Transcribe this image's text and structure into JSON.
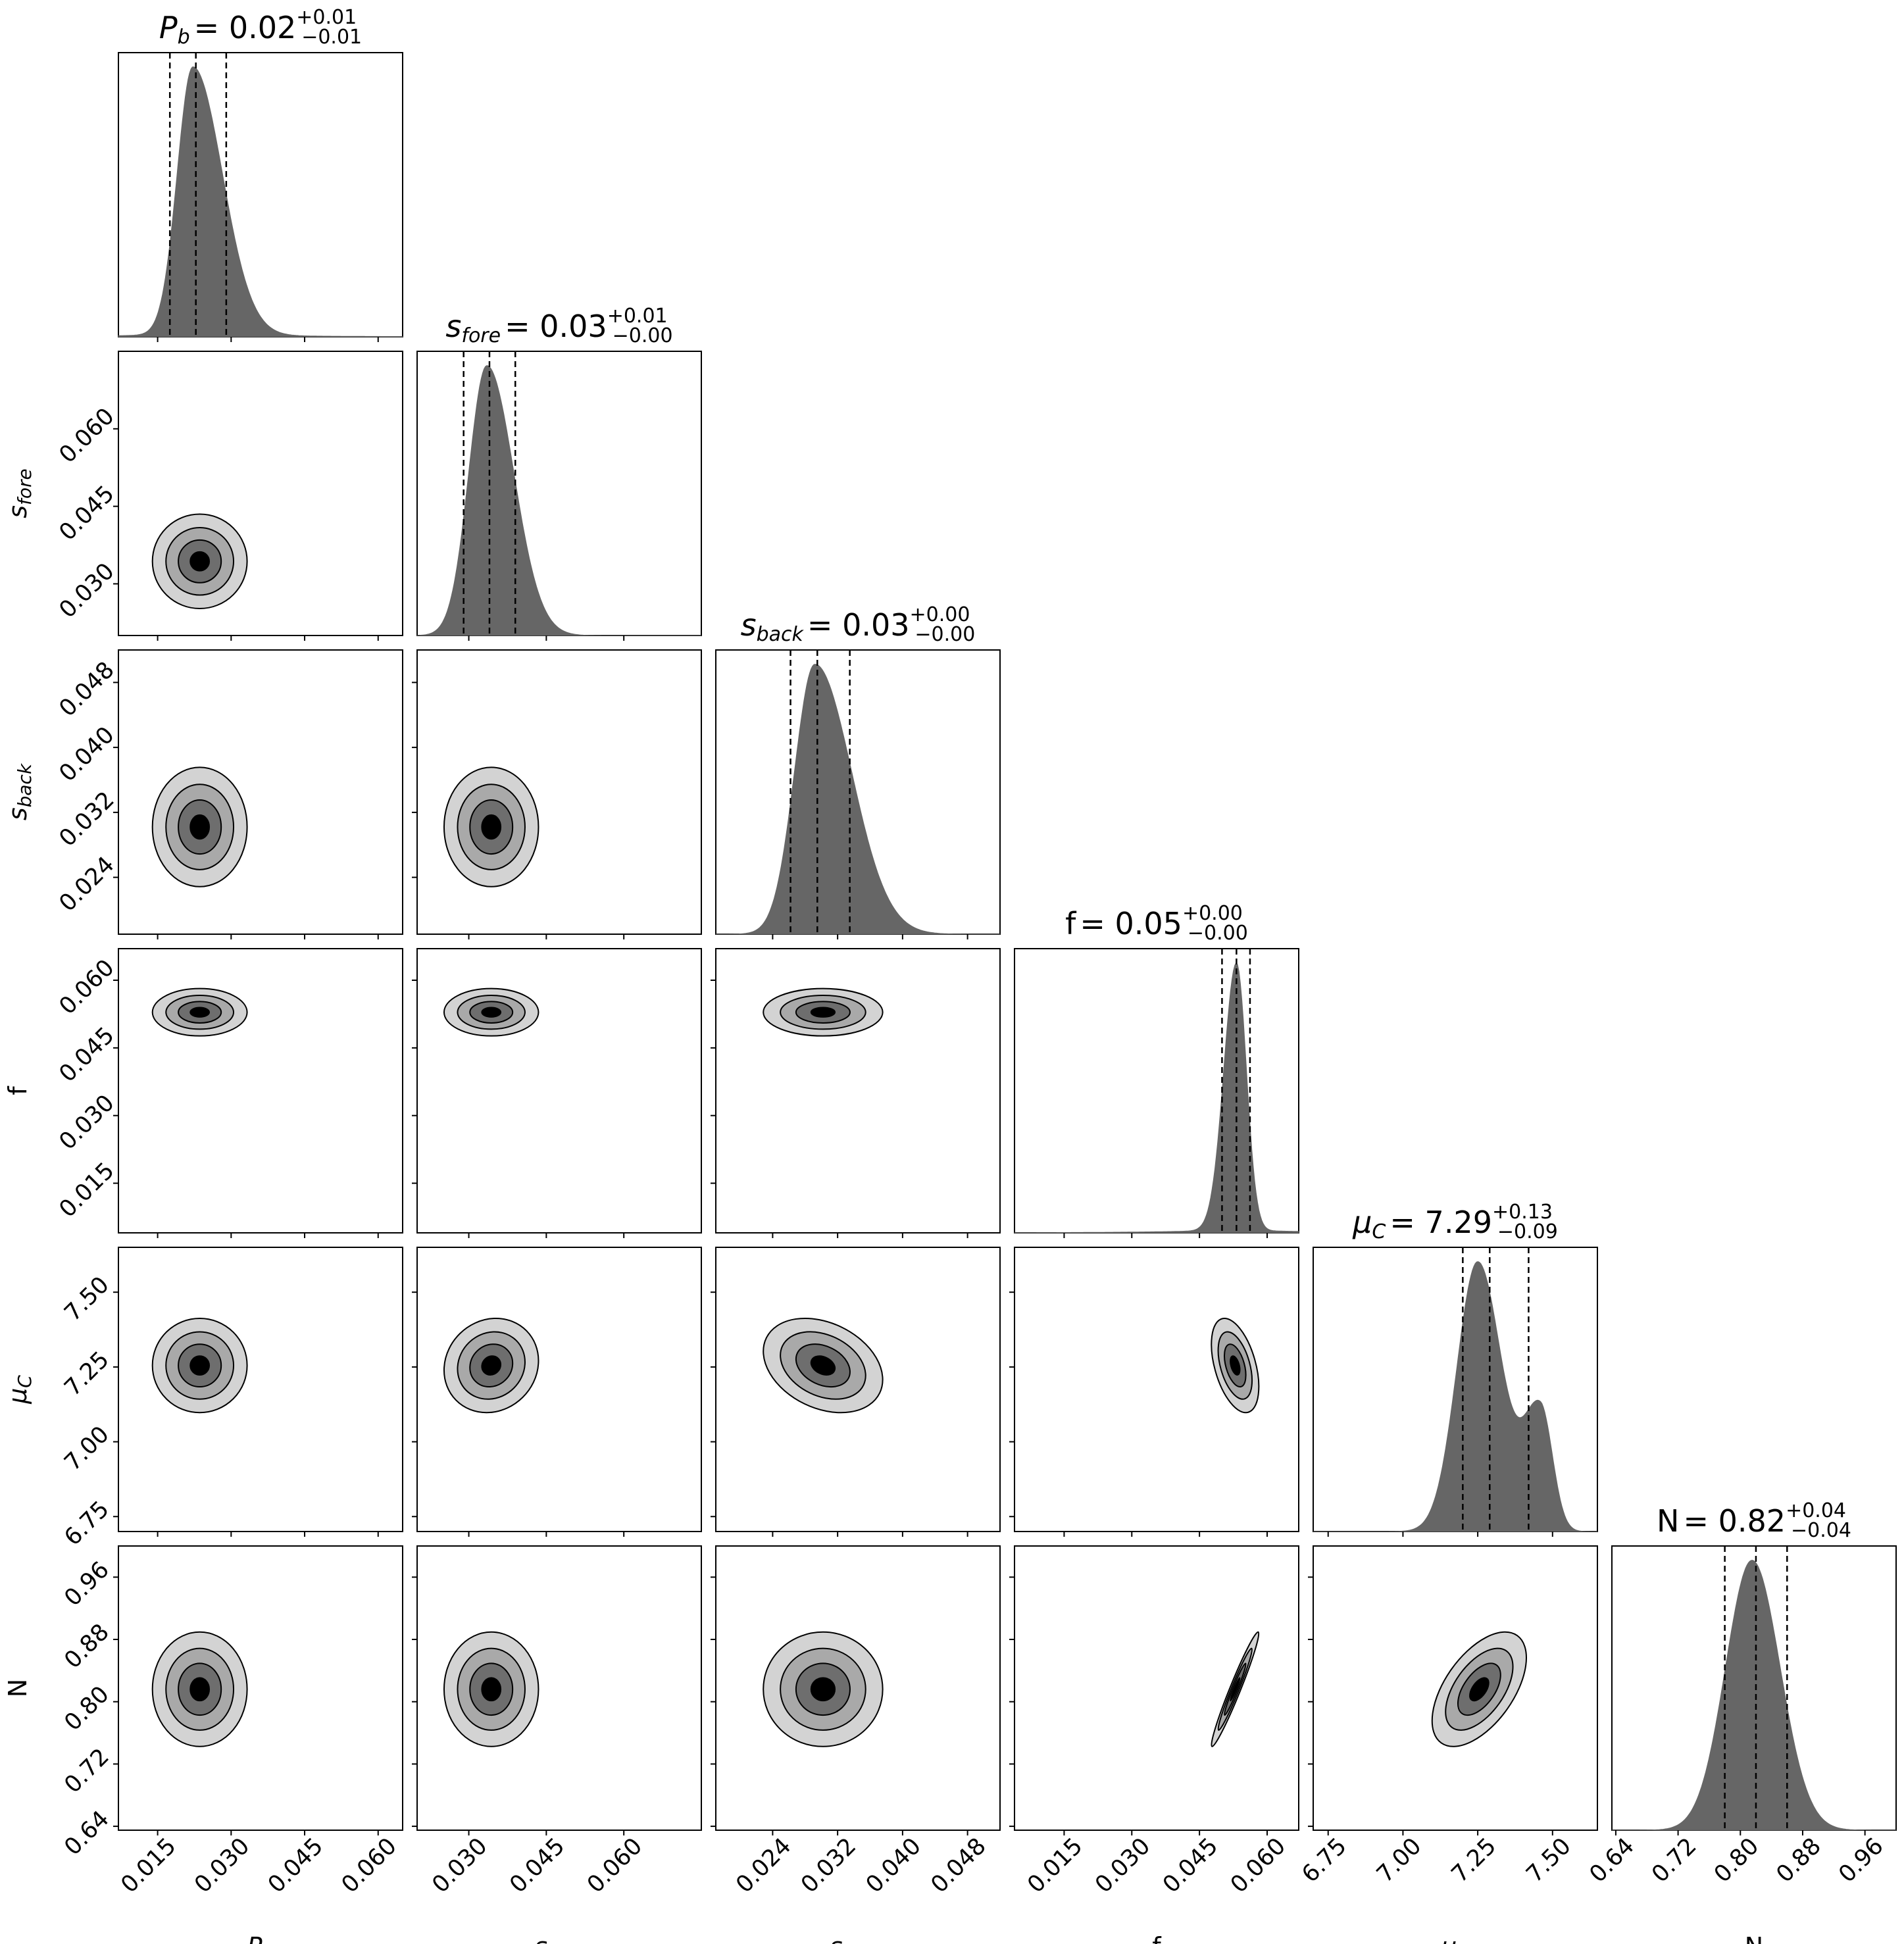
{
  "chart_data": {
    "type": "corner",
    "parameters": [
      {
        "key": "Pb",
        "sym": "P",
        "sub": "b",
        "italic_sym": true,
        "label": "P_b",
        "range": [
          0.007,
          0.065
        ],
        "ticks": [
          0.015,
          0.03,
          0.045,
          0.06
        ],
        "tick_labels": [
          "0.015",
          "0.030",
          "0.045",
          "0.060"
        ],
        "title": {
          "value": "0.02",
          "plus": "+0.01",
          "minus": "−0.01"
        },
        "quantiles": [
          0.0175,
          0.0228,
          0.029
        ],
        "mode": 0.022
      },
      {
        "key": "sfore",
        "sym": "s",
        "sub": "fore",
        "italic_sym": true,
        "label": "s_fore",
        "range": [
          0.02,
          0.075
        ],
        "ticks": [
          0.03,
          0.045,
          0.06
        ],
        "tick_labels": [
          "0.030",
          "0.045",
          "0.060"
        ],
        "title": {
          "value": "0.03",
          "plus": "+0.01",
          "minus": "−0.00"
        },
        "quantiles": [
          0.029,
          0.034,
          0.039
        ],
        "mode": 0.0335
      },
      {
        "key": "sback",
        "sym": "s",
        "sub": "back",
        "italic_sym": true,
        "label": "s_back",
        "range": [
          0.017,
          0.052
        ],
        "ticks": [
          0.024,
          0.032,
          0.04,
          0.048
        ],
        "tick_labels": [
          "0.024",
          "0.032",
          "0.040",
          "0.048"
        ],
        "title": {
          "value": "0.03",
          "plus": "+0.00",
          "minus": "−0.00"
        },
        "quantiles": [
          0.0262,
          0.0295,
          0.0335
        ],
        "mode": 0.029
      },
      {
        "key": "f",
        "sym": "f",
        "sub": "",
        "italic_sym": false,
        "label": "f",
        "range": [
          0.004,
          0.067
        ],
        "ticks": [
          0.015,
          0.03,
          0.045,
          0.06
        ],
        "tick_labels": [
          "0.015",
          "0.030",
          "0.045",
          "0.060"
        ],
        "title": {
          "value": "0.05",
          "plus": "+0.00",
          "minus": "−0.00"
        },
        "quantiles": [
          0.05,
          0.0532,
          0.0562
        ],
        "mode": 0.053
      },
      {
        "key": "muC",
        "sym": "μ",
        "sub": "C",
        "italic_sym": true,
        "label": "μ_C",
        "range": [
          6.7,
          7.65
        ],
        "ticks": [
          6.75,
          7.0,
          7.25,
          7.5
        ],
        "tick_labels": [
          "6.75",
          "7.00",
          "7.25",
          "7.50"
        ],
        "title": {
          "value": "7.29",
          "plus": "+0.13",
          "minus": "−0.09"
        },
        "quantiles": [
          7.2,
          7.29,
          7.42
        ],
        "mode": 7.25
      },
      {
        "key": "N",
        "sym": "N",
        "sub": "",
        "italic_sym": false,
        "label": "N",
        "range": [
          0.635,
          1.0
        ],
        "ticks": [
          0.64,
          0.72,
          0.8,
          0.88,
          0.96
        ],
        "tick_labels": [
          "0.64",
          "0.72",
          "0.80",
          "0.88",
          "0.96"
        ],
        "title": {
          "value": "0.82",
          "plus": "+0.04",
          "minus": "−0.04"
        },
        "quantiles": [
          0.78,
          0.82,
          0.86
        ],
        "mode": 0.82
      }
    ],
    "marginals": [
      {
        "param": "Pb",
        "shape": "skew",
        "center": 0.0222,
        "sigma_left": 0.0032,
        "sigma_right": 0.006,
        "tail": 0.01
      },
      {
        "param": "sfore",
        "shape": "skew",
        "center": 0.0335,
        "sigma_left": 0.0035,
        "sigma_right": 0.0052,
        "tail": 0.0
      },
      {
        "param": "sback",
        "shape": "skew",
        "center": 0.0292,
        "sigma_left": 0.0025,
        "sigma_right": 0.0045,
        "tail": 0.0
      },
      {
        "param": "f",
        "shape": "skew",
        "center": 0.0532,
        "sigma_left": 0.0028,
        "sigma_right": 0.0022,
        "tail": 0.012
      },
      {
        "param": "muC",
        "shape": "bimodal",
        "center": 7.25,
        "sigma_left": 0.07,
        "sigma_right": 0.08,
        "second_center": 7.46,
        "second_weight": 0.45,
        "tail": 0.0
      },
      {
        "param": "N",
        "shape": "skew",
        "center": 0.815,
        "sigma_left": 0.034,
        "sigma_right": 0.036,
        "tail": 0.0
      }
    ],
    "contour_levels": 4,
    "contour_fill_colors": [
      "#d3d3d3",
      "#a9a9a9",
      "#6e6e6e",
      "#000000"
    ],
    "histogram_fill_color": "#666666",
    "correlations": {
      "3-5": 0.97,
      "4-5": 0.55,
      "3-4": -0.45,
      "2-4": -0.3,
      "1-4": 0.1,
      "0-4": 0.0,
      "0-1": 0.0,
      "0-2": 0.0,
      "1-2": 0.0,
      "0-3": 0.0,
      "1-3": 0.0,
      "2-3": 0.0,
      "0-5": 0.0,
      "1-5": 0.0,
      "2-5": 0.0
    },
    "grid": false,
    "legend": "none"
  }
}
